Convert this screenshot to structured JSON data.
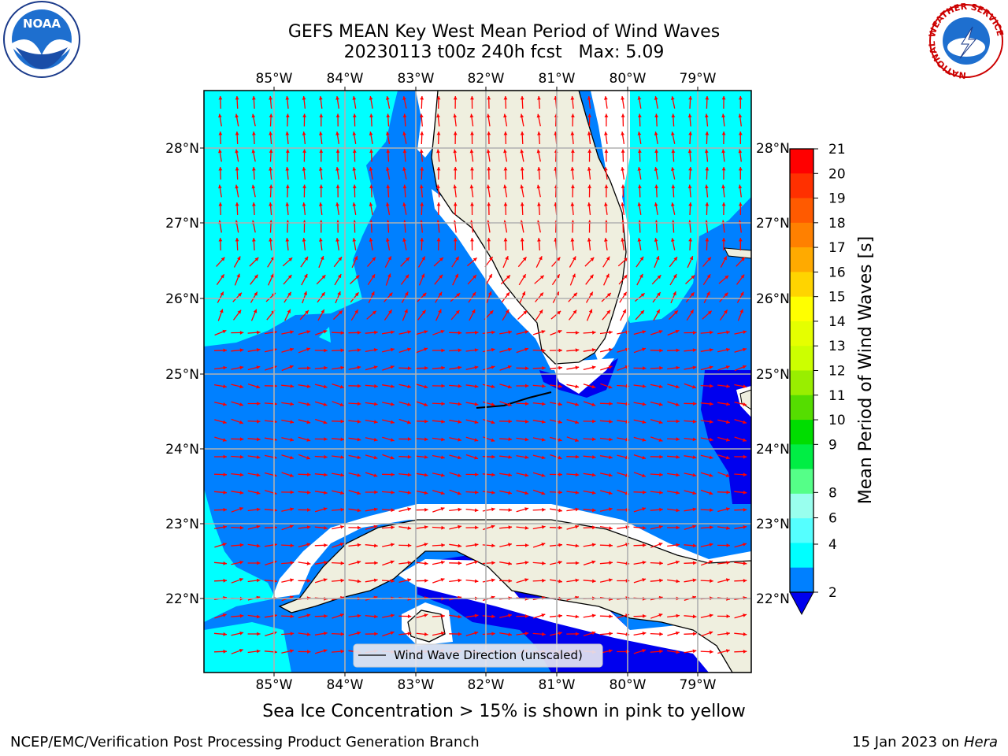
{
  "title": {
    "line1": "GEFS MEAN Key West Mean Period of Wind Waves",
    "line2": "20230113 t00z 240h fcst   Max: 5.09"
  },
  "map": {
    "lon_ticks": [
      "85°W",
      "84°W",
      "83°W",
      "82°W",
      "81°W",
      "80°W",
      "79°W"
    ],
    "lat_ticks": [
      "28°N",
      "27°N",
      "26°N",
      "25°N",
      "24°N",
      "23°N",
      "22°N"
    ],
    "legend_label": "Wind Wave Direction (unscaled)",
    "colors": {
      "cyan": "#00ffff",
      "blue": "#0080ff",
      "dark_blue": "#0000ee",
      "land": "#efefdf",
      "arrow": "#ff0000",
      "grid": "#b0b0b0"
    }
  },
  "colorbar": {
    "label": "Mean Period of Wind Waves [s]",
    "ticks": [
      "21",
      "20",
      "19",
      "18",
      "17",
      "16",
      "15",
      "14",
      "13",
      "12",
      "11",
      "10",
      "9",
      "8",
      "6",
      "4",
      "2"
    ],
    "colors": [
      "#ff0000",
      "#ff3000",
      "#ff5a00",
      "#ff8000",
      "#ffaa00",
      "#ffd400",
      "#ffff00",
      "#e5ff00",
      "#ccff00",
      "#99ee00",
      "#55dd00",
      "#00dd00",
      "#00ee44",
      "#55ff88",
      "#99ffee",
      "#55ffff",
      "#00ffff",
      "#0080ff"
    ],
    "under_color": "#0000ee"
  },
  "note": "Sea Ice Concentration > 15% is shown in pink to yellow",
  "footer": {
    "left": "NCEP/EMC/Verification Post Processing Product Generation Branch",
    "date": "15 Jan 2023 on ",
    "machine": "Hera"
  },
  "logos": {
    "noaa_text": "NOAA",
    "nws_ring": "NATIONAL WEATHER SERVICE"
  }
}
